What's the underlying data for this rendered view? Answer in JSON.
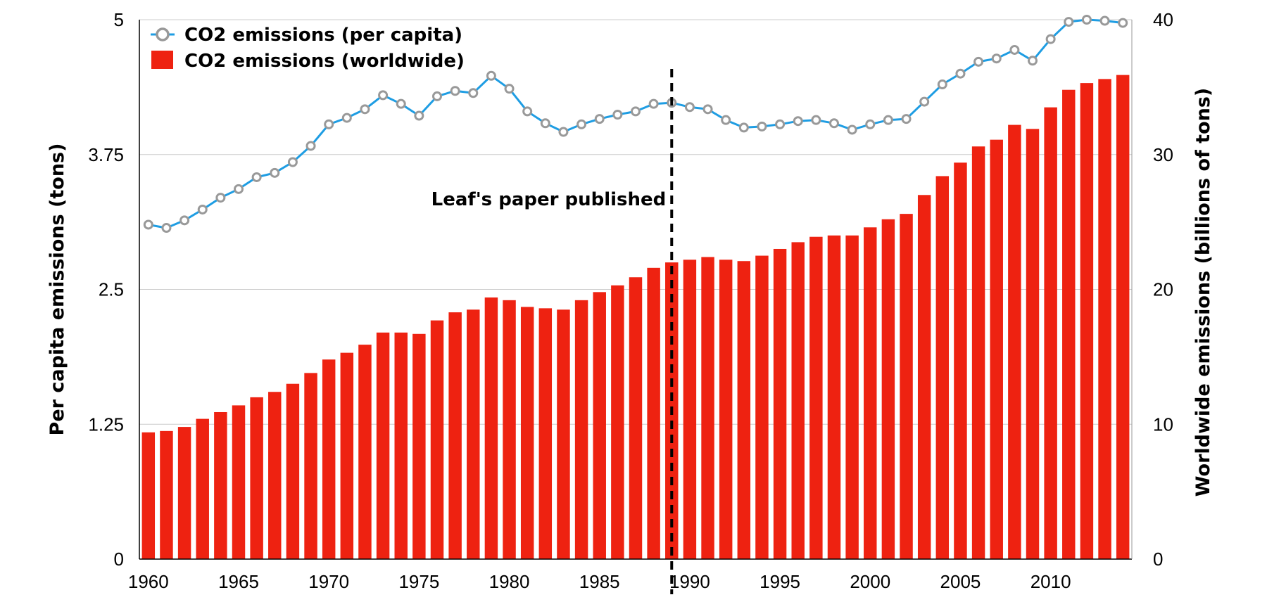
{
  "chart_data": {
    "type": "bar+line",
    "x": [
      1960,
      1961,
      1962,
      1963,
      1964,
      1965,
      1966,
      1967,
      1968,
      1969,
      1970,
      1971,
      1972,
      1973,
      1974,
      1975,
      1976,
      1977,
      1978,
      1979,
      1980,
      1981,
      1982,
      1983,
      1984,
      1985,
      1986,
      1987,
      1988,
      1989,
      1990,
      1991,
      1992,
      1993,
      1994,
      1995,
      1996,
      1997,
      1998,
      1999,
      2000,
      2001,
      2002,
      2003,
      2004,
      2005,
      2006,
      2007,
      2008,
      2009,
      2010,
      2011,
      2012,
      2013,
      2014
    ],
    "x_ticks": [
      "1960",
      "1965",
      "1970",
      "1975",
      "1980",
      "1985",
      "1990",
      "1995",
      "2000",
      "2005",
      "2010"
    ],
    "x_tick_values": [
      1960,
      1965,
      1970,
      1975,
      1980,
      1985,
      1990,
      1995,
      2000,
      2005,
      2010
    ],
    "series": [
      {
        "name": "CO2 emissions (worldwide)",
        "kind": "bar",
        "axis": "right",
        "color": "#ee2211",
        "values": [
          9.4,
          9.5,
          9.8,
          10.4,
          10.9,
          11.4,
          12.0,
          12.4,
          13.0,
          13.8,
          14.8,
          15.3,
          15.9,
          16.8,
          16.8,
          16.7,
          17.7,
          18.3,
          18.5,
          19.4,
          19.2,
          18.7,
          18.6,
          18.5,
          19.2,
          19.8,
          20.3,
          20.9,
          21.6,
          22.0,
          22.2,
          22.4,
          22.2,
          22.1,
          22.5,
          23.0,
          23.5,
          23.9,
          24.0,
          24.0,
          24.6,
          25.2,
          25.6,
          27.0,
          28.4,
          29.4,
          30.6,
          31.1,
          32.2,
          31.9,
          33.5,
          34.8,
          35.3,
          35.6,
          35.9
        ]
      },
      {
        "name": "CO2 emissions (per capita)",
        "kind": "line",
        "axis": "left",
        "color": "#1e9de3",
        "marker_color": "#999999",
        "values": [
          3.1,
          3.07,
          3.14,
          3.24,
          3.35,
          3.43,
          3.54,
          3.58,
          3.68,
          3.83,
          4.03,
          4.09,
          4.17,
          4.3,
          4.22,
          4.11,
          4.29,
          4.34,
          4.32,
          4.48,
          4.36,
          4.15,
          4.04,
          3.96,
          4.03,
          4.08,
          4.12,
          4.15,
          4.22,
          4.23,
          4.19,
          4.17,
          4.07,
          4.0,
          4.01,
          4.03,
          4.06,
          4.07,
          4.04,
          3.98,
          4.03,
          4.07,
          4.08,
          4.24,
          4.4,
          4.5,
          4.61,
          4.64,
          4.72,
          4.62,
          4.82,
          4.98,
          5.0,
          4.99,
          4.97
        ]
      }
    ],
    "y_left": {
      "label": "Per capita emissions (tons)",
      "ylim": [
        0,
        5
      ],
      "ticks": [
        "0",
        "1.25",
        "2.5",
        "3.75",
        "5"
      ],
      "tick_values": [
        0,
        1.25,
        2.5,
        3.75,
        5
      ]
    },
    "y_right": {
      "label": "Worldwide emissions (billions of tons)",
      "ylim": [
        0,
        40
      ],
      "ticks": [
        "0",
        "10",
        "20",
        "30",
        "40"
      ],
      "tick_values": [
        0,
        10,
        20,
        30,
        40
      ]
    },
    "xlim": [
      1959.5,
      2014.5
    ],
    "grid": "horizontal",
    "legend": {
      "position": "top-left",
      "entries": [
        "CO2 emissions (per capita)",
        "CO2 emissions (worldwide)"
      ]
    },
    "annotation": {
      "text": "Leaf's paper published",
      "x": 1989,
      "style": "dashed vertical line"
    }
  }
}
